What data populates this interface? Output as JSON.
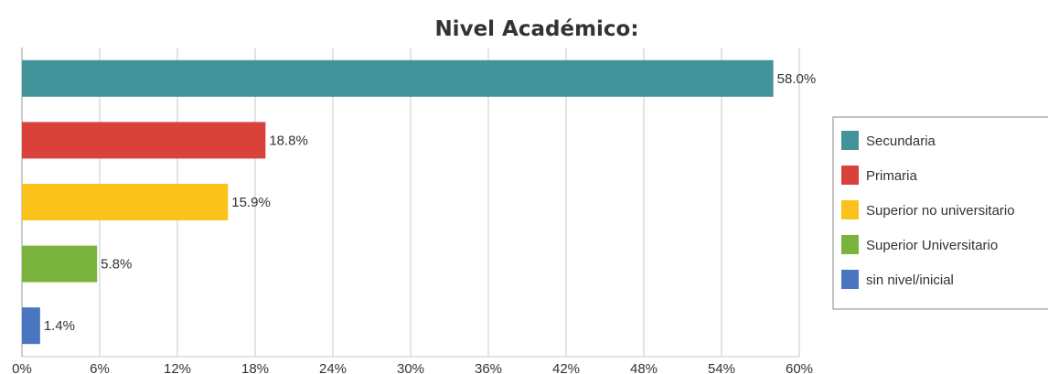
{
  "chart_data": {
    "type": "bar",
    "orientation": "horizontal",
    "title": "Nivel Académico:",
    "xlabel": "",
    "ylabel": "",
    "categories": [
      "Secundaria",
      "Primaria",
      "Superior no universitario",
      "Superior Universitario",
      "sin nivel/inicial"
    ],
    "values": [
      58.0,
      18.8,
      15.9,
      5.8,
      1.4
    ],
    "data_labels": [
      "58.0%",
      "18.8%",
      "15.9%",
      "5.8%",
      "1.4%"
    ],
    "colors": [
      "#42939a",
      "#d9413b",
      "#fbc21b",
      "#7ab43e",
      "#4a75bf"
    ],
    "xlim": [
      0,
      60
    ],
    "x_ticks": [
      "0%",
      "6%",
      "12%",
      "18%",
      "24%",
      "30%",
      "36%",
      "42%",
      "48%",
      "54%",
      "60%"
    ],
    "grid": true,
    "legend": "right"
  }
}
